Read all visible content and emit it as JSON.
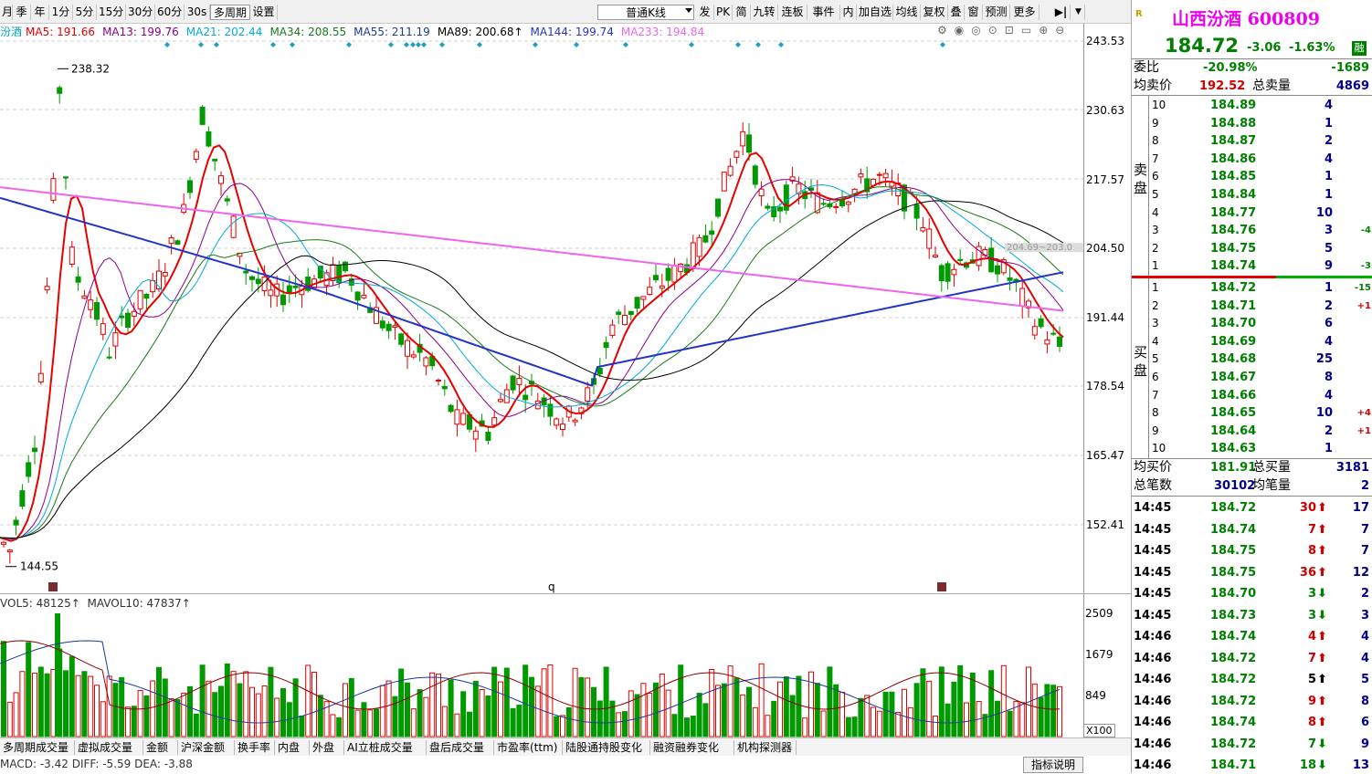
{
  "toolbar": {
    "left": [
      "月",
      "季",
      "年",
      "1分",
      "5分",
      "15分",
      "30分",
      "60分",
      "30s",
      "多周期",
      "设置"
    ],
    "kline_select": "普通K线",
    "right": [
      "发",
      "PK",
      "简",
      "九转",
      "连板",
      "事件",
      "内",
      "加自选",
      "均线",
      "复权",
      "叠",
      "窗",
      "预测",
      "更多"
    ]
  },
  "ma_legend": [
    {
      "label": "MA5: 191.66",
      "color": "#e60000"
    },
    {
      "label": "MA13: 199.76",
      "color": "#8b008b"
    },
    {
      "label": "MA21: 202.44",
      "color": "#00aadd"
    },
    {
      "label": "MA34: 208.55",
      "color": "#1a7a1a"
    },
    {
      "label": "MA55: 211.19",
      "color": "#1a3a9a"
    },
    {
      "label": "MA89: 200.68↑",
      "color": "#000000"
    },
    {
      "label": "MA144: 199.74",
      "color": "#2233cc"
    },
    {
      "label": "MA233: 194.84",
      "color": "#ee66ee"
    }
  ],
  "ma_legend_prefix": "汾酒",
  "price_axis": [
    "243.53",
    "230.63",
    "217.57",
    "204.50",
    "191.44",
    "178.54",
    "165.47",
    "152.41"
  ],
  "high_label": "238.32",
  "low_label": "144.55",
  "mark_q": "q",
  "dash_label": "204.69~203.0",
  "vol_legend": {
    "vol5": "VOL5: 48125↑",
    "mavol10": "MAVOL10: 47837↑"
  },
  "vol_axis": [
    "2509",
    "1679",
    "849"
  ],
  "vol_unit": "X100",
  "bottom_tabs": [
    "多周期成交量",
    "虚拟成交量",
    "金额",
    "沪深金额",
    "换手率",
    "内盘",
    "外盘",
    "AI立桩成交量",
    "盘后成交量",
    "市盈率(ttm)",
    "陆股通持股变化",
    "融资融券变化",
    "机构探测器"
  ],
  "macd": {
    "macd": "MACD: -3.42",
    "diff": "DIFF: -5.59",
    "dea": "DEA: -3.88"
  },
  "indicator_btn": "指标说明",
  "stock": {
    "name": "山西汾酒",
    "code": "600809",
    "price": "184.72",
    "change": "-3.06",
    "pct": "-1.63%",
    "tag": "融"
  },
  "weibi": {
    "label": "委比",
    "value": "-20.98%",
    "diff": "-1689"
  },
  "avg_sell": {
    "label": "均卖价",
    "value": "192.52",
    "total_label": "总卖量",
    "total": "4869"
  },
  "sell_label": [
    "卖",
    "盘"
  ],
  "buy_label": [
    "买",
    "盘"
  ],
  "sells": [
    {
      "n": "10",
      "p": "184.89",
      "v": "4",
      "d": ""
    },
    {
      "n": "9",
      "p": "184.88",
      "v": "1",
      "d": ""
    },
    {
      "n": "8",
      "p": "184.87",
      "v": "2",
      "d": ""
    },
    {
      "n": "7",
      "p": "184.86",
      "v": "4",
      "d": ""
    },
    {
      "n": "6",
      "p": "184.85",
      "v": "1",
      "d": ""
    },
    {
      "n": "5",
      "p": "184.84",
      "v": "1",
      "d": ""
    },
    {
      "n": "4",
      "p": "184.77",
      "v": "10",
      "d": ""
    },
    {
      "n": "3",
      "p": "184.76",
      "v": "3",
      "d": "-4"
    },
    {
      "n": "2",
      "p": "184.75",
      "v": "5",
      "d": ""
    },
    {
      "n": "1",
      "p": "184.74",
      "v": "9",
      "d": "-3"
    }
  ],
  "buys": [
    {
      "n": "1",
      "p": "184.72",
      "v": "1",
      "d": "-15"
    },
    {
      "n": "2",
      "p": "184.71",
      "v": "2",
      "d": "+1"
    },
    {
      "n": "3",
      "p": "184.70",
      "v": "6",
      "d": ""
    },
    {
      "n": "4",
      "p": "184.69",
      "v": "4",
      "d": ""
    },
    {
      "n": "5",
      "p": "184.68",
      "v": "25",
      "d": ""
    },
    {
      "n": "6",
      "p": "184.67",
      "v": "8",
      "d": ""
    },
    {
      "n": "7",
      "p": "184.66",
      "v": "4",
      "d": ""
    },
    {
      "n": "8",
      "p": "184.65",
      "v": "10",
      "d": "+4"
    },
    {
      "n": "9",
      "p": "184.64",
      "v": "2",
      "d": "+1"
    },
    {
      "n": "10",
      "p": "184.63",
      "v": "1",
      "d": ""
    }
  ],
  "avg_buy": {
    "label": "均买价",
    "value": "181.91",
    "total_label": "总买量",
    "total": "3181"
  },
  "deals": {
    "label": "总笔数",
    "value": "30102",
    "avg_label": "均笔量",
    "avg": "2"
  },
  "ticks": [
    {
      "t": "14:45",
      "p": "184.72",
      "v": "30",
      "dir": "up",
      "n": "17"
    },
    {
      "t": "14:45",
      "p": "184.74",
      "v": "7",
      "dir": "up",
      "n": "7"
    },
    {
      "t": "14:45",
      "p": "184.75",
      "v": "8",
      "dir": "up",
      "n": "7"
    },
    {
      "t": "14:45",
      "p": "184.75",
      "v": "36",
      "dir": "up",
      "n": "12"
    },
    {
      "t": "14:45",
      "p": "184.70",
      "v": "3",
      "dir": "down",
      "n": "2"
    },
    {
      "t": "14:45",
      "p": "184.73",
      "v": "3",
      "dir": "down",
      "n": "3"
    },
    {
      "t": "14:46",
      "p": "184.74",
      "v": "4",
      "dir": "up",
      "n": "4"
    },
    {
      "t": "14:46",
      "p": "184.72",
      "v": "7",
      "dir": "up",
      "n": "4"
    },
    {
      "t": "14:46",
      "p": "184.72",
      "v": "5",
      "dir": "upb",
      "n": "5"
    },
    {
      "t": "14:46",
      "p": "184.72",
      "v": "9",
      "dir": "up",
      "n": "8"
    },
    {
      "t": "14:46",
      "p": "184.74",
      "v": "8",
      "dir": "up",
      "n": "6"
    },
    {
      "t": "14:46",
      "p": "184.72",
      "v": "7",
      "dir": "down",
      "n": "9"
    },
    {
      "t": "14:46",
      "p": "184.71",
      "v": "18",
      "dir": "down",
      "n": "13"
    }
  ]
}
